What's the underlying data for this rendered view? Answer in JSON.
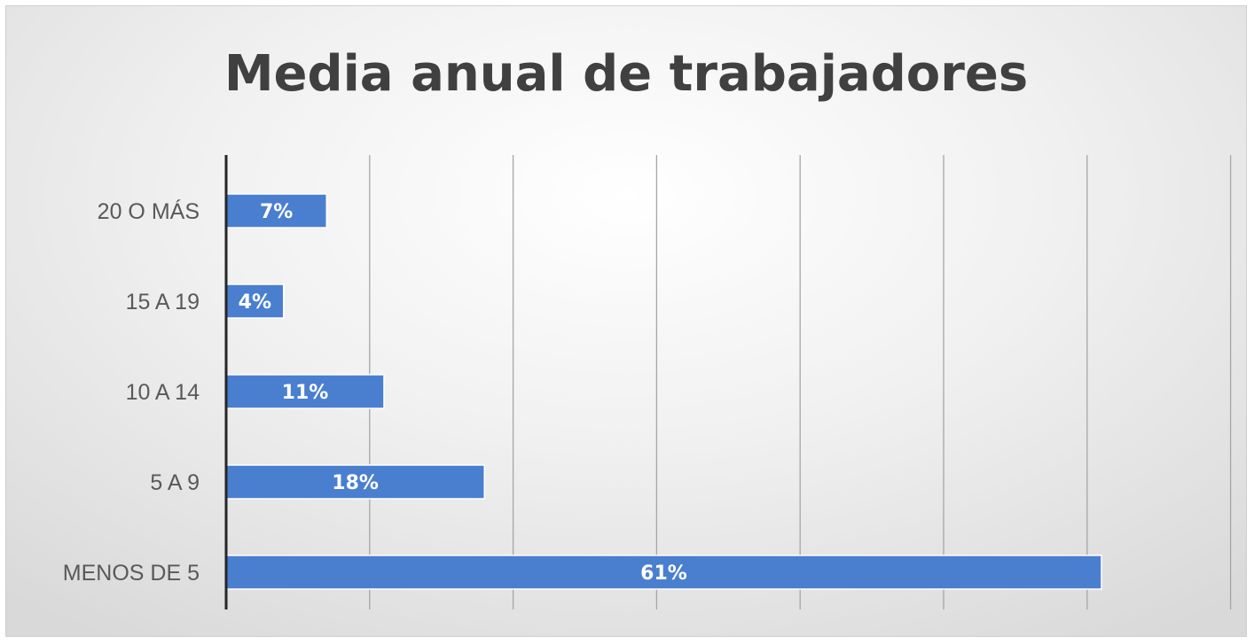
{
  "chart_data": {
    "type": "bar",
    "orientation": "horizontal",
    "title": "Media anual de trabajadores",
    "xlabel": "",
    "ylabel": "",
    "categories": [
      "20 O MÁS",
      "15 A 19",
      "10 A 14",
      "5 A 9",
      "MENOS DE 5"
    ],
    "values": [
      7,
      4,
      11,
      18,
      61
    ],
    "data_labels": [
      "7%",
      "4%",
      "11%",
      "18%",
      "61%"
    ],
    "unit": "%",
    "xlim": [
      0,
      70
    ],
    "x_gridline_step": 10,
    "grid": true,
    "legend": false,
    "bar_color": "#4a7fcf",
    "axis_color": "#262626",
    "grid_color": "#a6a6a6"
  }
}
